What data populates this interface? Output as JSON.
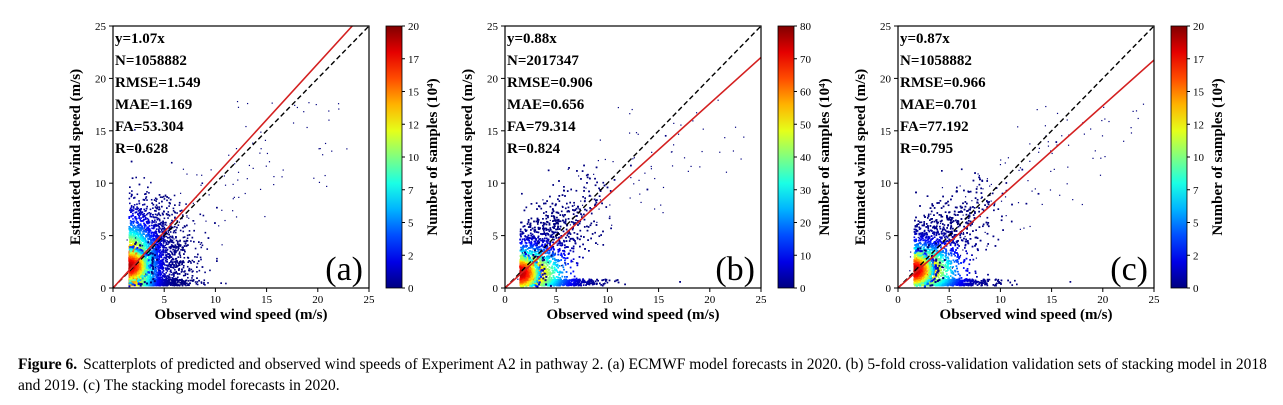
{
  "chart_data": [
    {
      "type": "scatter",
      "panel_label": "(a)",
      "xlabel": "Observed wind speed (m/s)",
      "ylabel": "Estimated wind speed (m/s)",
      "xlim": [
        0,
        25
      ],
      "ylim": [
        0,
        25
      ],
      "xticks": [
        "0",
        "5",
        "10",
        "15",
        "20",
        "25"
      ],
      "yticks": [
        "0",
        "5",
        "10",
        "15",
        "20",
        "25"
      ],
      "fit_line": {
        "slope": 1.07,
        "color": "#d42020"
      },
      "identity_line": {
        "slope": 1,
        "style": "dashed",
        "color": "#000000"
      },
      "stats": [
        "y=1.07x",
        "N=1058882",
        "RMSE=1.549",
        "MAE=1.169",
        "FA=53.304",
        "R=0.628"
      ],
      "colorbar": {
        "label": "Number of samples (10⁴)",
        "min": 0,
        "max": 20,
        "ticks": [
          "0",
          "2",
          "5",
          "7",
          "10",
          "12",
          "15",
          "17",
          "20"
        ]
      },
      "grid": false,
      "density": {
        "cx": 1.5,
        "cy": 2.2,
        "sx": 2.6,
        "sy": 2.8,
        "tilt": 0.35,
        "ymin": 0.5,
        "ymax": 7.3,
        "xmax_dense": 14,
        "xmax": 23
      }
    },
    {
      "type": "scatter",
      "panel_label": "(b)",
      "xlabel": "Observed wind speed (m/s)",
      "ylabel": "Estimated wind speed (m/s)",
      "xlim": [
        0,
        25
      ],
      "ylim": [
        0,
        25
      ],
      "xticks": [
        "0",
        "5",
        "10",
        "15",
        "20",
        "25"
      ],
      "yticks": [
        "0",
        "5",
        "10",
        "15",
        "20",
        "25"
      ],
      "fit_line": {
        "slope": 0.88,
        "color": "#d42020"
      },
      "identity_line": {
        "slope": 1,
        "style": "dashed",
        "color": "#000000"
      },
      "stats": [
        "y=0.88x",
        "N=2017347",
        "RMSE=0.906",
        "MAE=0.656",
        "FA=79.314",
        "R=0.824"
      ],
      "colorbar": {
        "label": "Number of samples (10⁴)",
        "min": 0,
        "max": 80,
        "ticks": [
          "0",
          "10",
          "20",
          "30",
          "40",
          "50",
          "60",
          "70",
          "80"
        ]
      },
      "grid": false,
      "density": {
        "cx": 1.4,
        "cy": 1.5,
        "sx": 4.5,
        "sy": 1.6,
        "tilt": 0.82,
        "ymin": 0.5,
        "ymax": 15,
        "xmax_dense": 17,
        "xmax": 24
      }
    },
    {
      "type": "scatter",
      "panel_label": "(c)",
      "xlabel": "Observed wind speed (m/s)",
      "ylabel": "Estimated wind speed (m/s)",
      "xlim": [
        0,
        25
      ],
      "ylim": [
        0,
        25
      ],
      "xticks": [
        "0",
        "5",
        "10",
        "15",
        "20",
        "25"
      ],
      "yticks": [
        "0",
        "5",
        "10",
        "15",
        "20",
        "25"
      ],
      "fit_line": {
        "slope": 0.87,
        "color": "#d42020"
      },
      "identity_line": {
        "slope": 1,
        "style": "dashed",
        "color": "#000000"
      },
      "stats": [
        "y=0.87x",
        "N=1058882",
        "RMSE=0.966",
        "MAE=0.701",
        "FA=77.192",
        "R=0.795"
      ],
      "colorbar": {
        "label": "Number of samples (10⁴)",
        "min": 0,
        "max": 20,
        "ticks": [
          "0",
          "2",
          "5",
          "7",
          "10",
          "12",
          "15",
          "17",
          "20"
        ]
      },
      "grid": false,
      "density": {
        "cx": 1.5,
        "cy": 1.8,
        "sx": 4.3,
        "sy": 1.6,
        "tilt": 0.8,
        "ymin": 0.5,
        "ymax": 14,
        "xmax_dense": 16,
        "xmax": 24
      }
    }
  ],
  "caption": {
    "label": "Figure 6.",
    "text": "Scatterplots of predicted and observed wind speeds of Experiment A2 in pathway 2. (a) ECMWF model forecasts in 2020. (b) 5-fold cross-validation validation sets of stacking model in 2018 and 2019. (c) The stacking model forecasts in 2020."
  }
}
